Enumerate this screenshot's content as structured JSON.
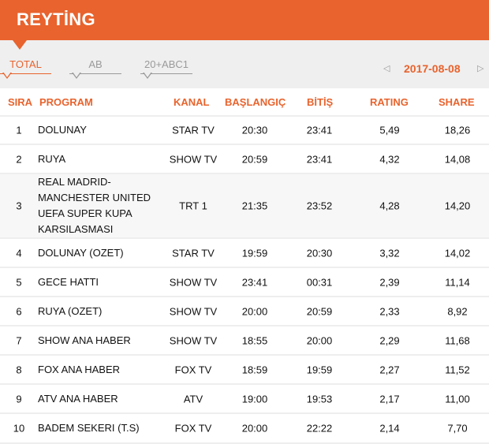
{
  "header": {
    "title": "REYTİNG"
  },
  "tabs": [
    {
      "label": "TOTAL",
      "active": true
    },
    {
      "label": "AB",
      "active": false
    },
    {
      "label": "20+ABC1",
      "active": false
    }
  ],
  "date": "2017-08-08",
  "nav": {
    "prev_icon": "triangle-left-icon",
    "next_icon": "triangle-right-icon"
  },
  "columns": {
    "rank": "SIRA",
    "program": "PROGRAM",
    "channel": "KANAL",
    "start": "BAŞLANGIÇ",
    "end": "BİTİŞ",
    "rating": "RATING",
    "share": "SHARE"
  },
  "rows": [
    {
      "rank": "1",
      "program": "DOLUNAY",
      "channel": "STAR TV",
      "start": "20:30",
      "end": "23:41",
      "rating": "5,49",
      "share": "18,26"
    },
    {
      "rank": "2",
      "program": "RUYA",
      "channel": "SHOW TV",
      "start": "20:59",
      "end": "23:41",
      "rating": "4,32",
      "share": "14,08"
    },
    {
      "rank": "3",
      "program": "REAL MADRID-MANCHESTER UNITED UEFA SUPER KUPA KARSILASMASI",
      "channel": "TRT 1",
      "start": "21:35",
      "end": "23:52",
      "rating": "4,28",
      "share": "14,20"
    },
    {
      "rank": "4",
      "program": "DOLUNAY (OZET)",
      "channel": "STAR TV",
      "start": "19:59",
      "end": "20:30",
      "rating": "3,32",
      "share": "14,02"
    },
    {
      "rank": "5",
      "program": "GECE HATTI",
      "channel": "SHOW TV",
      "start": "23:41",
      "end": "00:31",
      "rating": "2,39",
      "share": "11,14"
    },
    {
      "rank": "6",
      "program": "RUYA (OZET)",
      "channel": "SHOW TV",
      "start": "20:00",
      "end": "20:59",
      "rating": "2,33",
      "share": "8,92"
    },
    {
      "rank": "7",
      "program": "SHOW ANA HABER",
      "channel": "SHOW TV",
      "start": "18:55",
      "end": "20:00",
      "rating": "2,29",
      "share": "11,68"
    },
    {
      "rank": "8",
      "program": "FOX ANA HABER",
      "channel": "FOX TV",
      "start": "18:59",
      "end": "19:59",
      "rating": "2,27",
      "share": "11,52"
    },
    {
      "rank": "9",
      "program": "ATV ANA HABER",
      "channel": "ATV",
      "start": "19:00",
      "end": "19:53",
      "rating": "2,17",
      "share": "11,00"
    },
    {
      "rank": "10",
      "program": "BADEM SEKERI (T.S)",
      "channel": "FOX TV",
      "start": "20:00",
      "end": "22:22",
      "rating": "2,14",
      "share": "7,70"
    }
  ]
}
